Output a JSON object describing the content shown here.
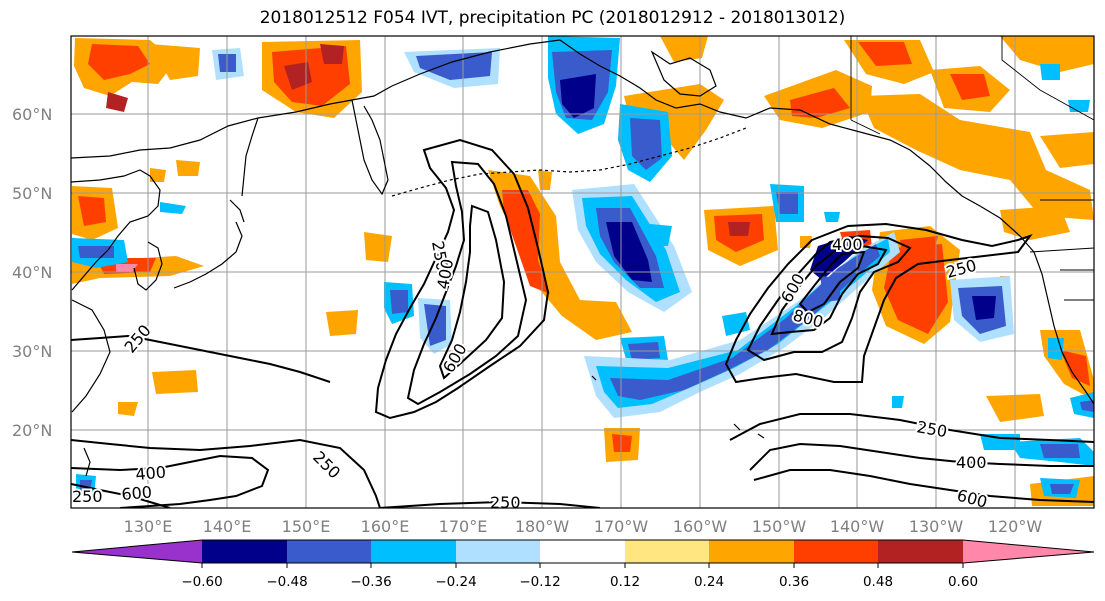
{
  "title": "2018012512 F054 IVT, precipitation PC (2018012912 - 2018013012)",
  "map": {
    "lat_labels": [
      "60°N",
      "50°N",
      "40°N",
      "30°N",
      "20°N"
    ],
    "lon_labels": [
      "130°E",
      "140°E",
      "150°E",
      "160°E",
      "170°E",
      "180°W",
      "170°W",
      "160°W",
      "150°W",
      "140°W",
      "130°W",
      "120°W"
    ],
    "contour_labels": [
      "250",
      "400",
      "600",
      "250",
      "400",
      "600",
      "800",
      "250",
      "250",
      "400",
      "600",
      "250",
      "400",
      "600",
      "250",
      "250"
    ]
  },
  "colorbar": {
    "ticks": [
      "−0.60",
      "−0.48",
      "−0.36",
      "−0.24",
      "−0.12",
      "0.12",
      "0.24",
      "0.36",
      "0.48",
      "0.60"
    ],
    "colors": [
      "#9932cc",
      "#00008b",
      "#3a5bcc",
      "#00bfff",
      "#b0e0ff",
      "#ffffff",
      "#ffe680",
      "#ffa500",
      "#ff3f00",
      "#b22222",
      "#ff88aa"
    ]
  }
}
